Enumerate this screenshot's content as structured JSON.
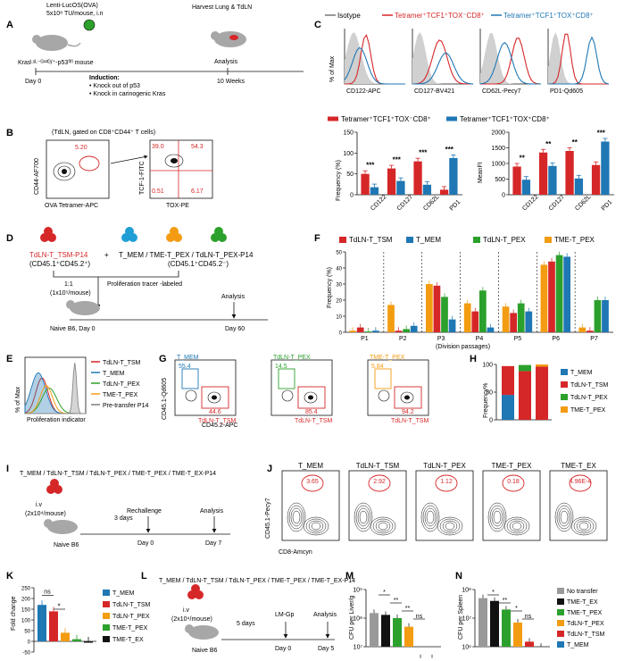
{
  "panels": {
    "A": {
      "letter": "A",
      "virus": "Lenti-LucOS(OVA)",
      "dose": "5x10⁸ TU/mouse, i.n",
      "mouse": "Krasᴸˢᴸ⁻ᴳ¹²ᴰ/⁺-p53ᶠˡᶠˡ mouse",
      "day0": "Day 0",
      "harvest": "Harvest Lung & TdLN",
      "analysis": "Analysis",
      "weeks": "10 Weeks",
      "induction_title": "Induction:",
      "induction_items": [
        "• Knock out of p53",
        "• Knock in carinogenic Kras"
      ]
    },
    "B": {
      "letter": "B",
      "title": "(TdLN, gated on CD8⁺CD44⁺ T cells)",
      "x1": "OVA Tetramer-APC",
      "y1": "CD44-AF700",
      "gate1": "5.20",
      "x2": "TOX-PE",
      "y2": "TCF-1-FITC",
      "q_tl": "39.0",
      "q_tr": "54.3",
      "q_bl": "0.51",
      "q_br": "6.17"
    },
    "C": {
      "letter": "C",
      "legend": [
        "Isotype",
        "Tetramer⁺TCF1⁺TOX⁻CD8⁺",
        "Tetramer⁺TCF1⁺TOX⁺CD8⁺"
      ],
      "ylabel": "% of Max",
      "histos": [
        "CD122-APC",
        "CD127-BV421",
        "CD62L-Pecy7",
        "PD1-Qd605"
      ],
      "bar_legend": [
        "Tetramer⁺TCF1⁺TOX⁻CD8⁺",
        "Tetramer⁺TCF1⁺TOX⁺CD8⁺"
      ],
      "freq_ylabel": "Frequency (%)",
      "mfi_ylabel": "MeanFI",
      "cats": [
        "CD122",
        "CD127",
        "CD62L",
        "PD1"
      ],
      "freq_sig": [
        "***",
        "***",
        "***",
        "***"
      ],
      "mfi_sig": [
        "**",
        "**",
        "**",
        "***"
      ],
      "freq_ticks": [
        "0",
        "50",
        "100",
        "150"
      ],
      "mfi_ticks": [
        "0",
        "500",
        "1000",
        "1500",
        "2000"
      ]
    },
    "D": {
      "letter": "D",
      "left": "TdLN-T_TSM-P14",
      "left_sub": "(CD45.1⁺CD45.2⁺)",
      "plus": "+",
      "right": "T_MEM / TME-T_PEX / TdLN-T_PEX-P14",
      "right_sub": "(CD45.1⁺CD45.2⁻)",
      "ratio": "1:1",
      "dose": "(1x10⁵/mouse)",
      "tracer": "Proliferation tracer -labeled",
      "naive": "Naive B6, Day 0",
      "analysis": "Analysis",
      "day60": "Day 60"
    },
    "E": {
      "letter": "E",
      "legend": [
        "TdLN-T_TSM",
        "T_MEM",
        "TdLN-T_PEX",
        "TME-T_PEX",
        "Pre-transfer P14"
      ],
      "ylabel": "% of Max",
      "xlabel": "Proliferation indicator"
    },
    "F": {
      "letter": "F",
      "legend": [
        "TdLN-T_TSM",
        "T_MEM",
        "TdLN-T_PEX",
        "TME-T_PEX"
      ],
      "ylabel": "Frequency (%)",
      "xlabel": "(Division passages)",
      "cats": [
        "P1",
        "P2",
        "P3",
        "P4",
        "P5",
        "P6",
        "P7"
      ],
      "ticks": [
        "0",
        "10",
        "20",
        "30",
        "40",
        "50"
      ]
    },
    "G": {
      "letter": "G",
      "ylabel": "CD45.1-Qd605",
      "xlabel": "CD45.2-APC",
      "plots": [
        {
          "top": "T_MEM",
          "top_val": "55.4",
          "bot_val": "44.6",
          "bot": "TdLN-T_TSM"
        },
        {
          "top": "TdLN-T_PEX",
          "top_val": "14.5",
          "bot_val": "85.4",
          "bot": "TdLN-T_TSM"
        },
        {
          "top": "TME-T_PEX",
          "top_val": "5.84",
          "bot_val": "94.2",
          "bot": "TdLN-T_TSM"
        }
      ]
    },
    "H": {
      "letter": "H",
      "ylabel": "Frequency%",
      "legend": [
        "T_MEM",
        "TdLN-T_TSM",
        "TdLN-T_PEX",
        "TME-T_PEX"
      ],
      "ticks": [
        "0",
        "50",
        "100"
      ]
    },
    "I": {
      "letter": "I",
      "cells": "T_MEM / TdLN-T_TSM / TdLN-T_PEX / TME-T_PEX / TME-T_EX-P14",
      "route": "i.v",
      "dose": "(2x10⁴/mouse)",
      "days": "3 days",
      "naive": "Naive B6",
      "rechallenge": "Rechallenge",
      "analysis": "Analysis",
      "day0": "Day 0",
      "day7": "Day 7"
    },
    "J": {
      "letter": "J",
      "titles": [
        "T_MEM",
        "TdLN-T_TSM",
        "TdLN-T_PEX",
        "TME-T_PEX",
        "TME-T_EX"
      ],
      "values": [
        "3.65",
        "2.92",
        "1.12",
        "0.18",
        "4.96E-4"
      ],
      "ylabel": "CD45.1-Pecy7",
      "xlabel": "CD8-Amcyn"
    },
    "K": {
      "letter": "K",
      "ylabel": "Fold change",
      "ticks": [
        "-50",
        "0",
        "50",
        "100",
        "150",
        "200",
        "250"
      ],
      "ns": "ns",
      "star": "*",
      "legend": [
        "T_MEM",
        "TdLN-T_TSM",
        "TdLN-T_PEX",
        "TME-T_PEX",
        "TME-T_EX"
      ]
    },
    "L": {
      "letter": "L",
      "cells": "T_MEM / TdLN-T_TSM / TdLN-T_PEX / TME-T_PEX / TME-T_EX-P14",
      "route": "i.v",
      "dose": "(2x10⁴/mouse)",
      "days": "5 days",
      "naive": "Naive B6",
      "lm": "LM-Gp",
      "analysis": "Analysis",
      "day0": "Day 0",
      "day5": "Day 5"
    },
    "M": {
      "letter": "M",
      "ylabel": "CFU per Liver/g",
      "ticks": [
        "10⁷",
        "10⁸",
        "10⁹"
      ],
      "sig": [
        "*",
        "**",
        "**",
        "ns"
      ]
    },
    "N": {
      "letter": "N",
      "ylabel": "CFU per Spleen",
      "ticks": [
        "10⁶",
        "10⁷",
        "10⁸"
      ],
      "sig": [
        "*",
        "**",
        "*",
        "ns"
      ],
      "legend": [
        "No transfer",
        "TME-T_EX",
        "TME-T_PEX",
        "TdLN-T_PEX",
        "TdLN-T_TSM",
        "T_MEM"
      ]
    }
  },
  "colors": {
    "red": "#d62728",
    "blue": "#1f77b4",
    "green": "#2ca02c",
    "orange": "#f39c12",
    "black": "#111111",
    "grey": "#7f7f7f"
  },
  "chart_data": [
    {
      "type": "bar",
      "panel": "C-left",
      "ylabel": "Frequency (%)",
      "categories": [
        "CD122",
        "CD127",
        "CD62L",
        "PD1"
      ],
      "ylim": [
        0,
        150
      ],
      "series": [
        {
          "name": "Tetramer⁺TCF1⁺TOX⁻CD8⁺",
          "values": [
            50,
            63,
            80,
            12
          ]
        },
        {
          "name": "Tetramer⁺TCF1⁺TOX⁺CD8⁺",
          "values": [
            18,
            33,
            24,
            88
          ]
        }
      ]
    },
    {
      "type": "bar",
      "panel": "C-right",
      "ylabel": "MeanFI",
      "categories": [
        "CD122",
        "CD127",
        "CD62L",
        "PD1"
      ],
      "ylim": [
        0,
        2000
      ],
      "series": [
        {
          "name": "Tetramer⁺TCF1⁺TOX⁻CD8⁺",
          "values": [
            900,
            1350,
            1400,
            950
          ]
        },
        {
          "name": "Tetramer⁺TCF1⁺TOX⁺CD8⁺",
          "values": [
            480,
            920,
            520,
            1700
          ]
        }
      ]
    },
    {
      "type": "bar",
      "panel": "F",
      "ylabel": "Frequency (%)",
      "categories": [
        "P1",
        "P2",
        "P3",
        "P4",
        "P5",
        "P6",
        "P7"
      ],
      "ylim": [
        0,
        50
      ],
      "series": [
        {
          "name": "TdLN-T_TSM",
          "values": [
            3,
            1,
            29,
            13,
            12,
            44,
            1
          ]
        },
        {
          "name": "T_MEM",
          "values": [
            1,
            4,
            8,
            3,
            13,
            47,
            20
          ]
        },
        {
          "name": "TdLN-T_PEX",
          "values": [
            0.5,
            2,
            22,
            26,
            18,
            48,
            20
          ]
        },
        {
          "name": "TME-T_PEX",
          "values": [
            1,
            17,
            30,
            18,
            16,
            42,
            3
          ]
        }
      ]
    },
    {
      "type": "bar",
      "panel": "H",
      "ylabel": "Frequency%",
      "categories": [
        "1",
        "2",
        "3"
      ],
      "ylim": [
        0,
        100
      ],
      "series": [
        {
          "name": "T_MEM",
          "values": [
            45,
            0,
            0
          ]
        },
        {
          "name": "TdLN-T_TSM",
          "values": [
            52,
            88,
            96
          ]
        },
        {
          "name": "TdLN-T_PEX",
          "values": [
            0,
            11,
            0
          ]
        },
        {
          "name": "TME-T_PEX",
          "values": [
            0,
            0,
            4
          ]
        }
      ]
    },
    {
      "type": "bar",
      "panel": "K",
      "ylabel": "Fold change",
      "categories": [
        "T_MEM",
        "TdLN-T_TSM",
        "TdLN-T_PEX",
        "TME-T_PEX",
        "TME-T_EX"
      ],
      "ylim": [
        -50,
        250
      ],
      "values": [
        170,
        140,
        40,
        10,
        -5
      ]
    },
    {
      "type": "bar",
      "panel": "M",
      "ylabel": "CFU per Liver/g",
      "log": true,
      "categories": [
        "No transfer",
        "TME-T_EX",
        "TME-T_PEX",
        "TdLN-T_PEX",
        "TdLN-T_TSM",
        "T_MEM"
      ],
      "values": [
        150000000.0,
        130000000.0,
        100000000.0,
        50000000.0,
        4000000.0,
        4000000.0
      ]
    },
    {
      "type": "bar",
      "panel": "N",
      "ylabel": "CFU per Spleen",
      "log": true,
      "categories": [
        "No transfer",
        "TME-T_EX",
        "TME-T_PEX",
        "TdLN-T_PEX",
        "TdLN-T_TSM",
        "T_MEM"
      ],
      "values": [
        50000000.0,
        40000000.0,
        20000000.0,
        7000000.0,
        1500000.0,
        1000000.0
      ]
    }
  ]
}
